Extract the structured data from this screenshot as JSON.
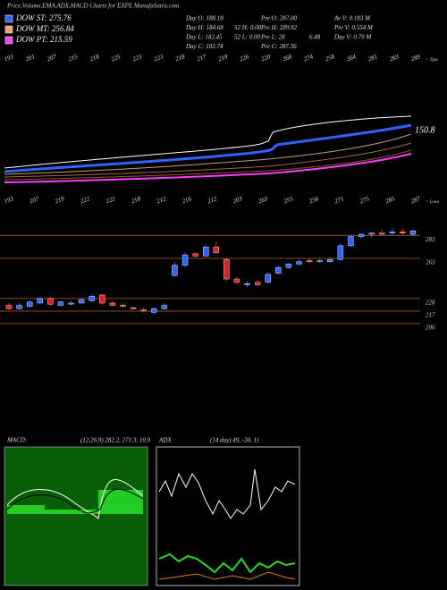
{
  "header": {
    "title": "Price,Volume,EMA,ADX,MACD Charts for EXPE MunafaSutra.com"
  },
  "legend": [
    {
      "label": "DOW ST: 275.76",
      "color": "#2f62ff"
    },
    {
      "label": "DOW MT: 256.84",
      "color": "#f4a070"
    },
    {
      "label": "DOW PT: 215.59",
      "color": "#ff3cff"
    }
  ],
  "stats": [
    [
      "Day O: 188.18",
      "Day H: 184.68",
      "Day L: 182.45",
      "Day C: 183.74"
    ],
    [
      "52 H: 0.00",
      "52 L: 0.00"
    ],
    [
      "Pre O: 287.00",
      "Pre H: 289.92",
      "Pre L: 28",
      "Pre C: 287.36"
    ],
    [
      "6.48"
    ],
    [
      "Av V: 0.183 M",
      "Pre V: 0.554 M",
      "Day V: 0.79 M"
    ]
  ],
  "chart_data": {
    "type": "candlestick",
    "tops_marker": "< Tops",
    "lows_marker": "< Lows",
    "tops": [
      193,
      201,
      207,
      215,
      218,
      225,
      223,
      223,
      218,
      217,
      219,
      226,
      220,
      268,
      274,
      258,
      264,
      281,
      283,
      289
    ],
    "lows": [
      193,
      207,
      219,
      222,
      222,
      218,
      212,
      216,
      212,
      203,
      263,
      255,
      256,
      271,
      275,
      285,
      287
    ],
    "ema_label": 150.8,
    "open": [
      222,
      219,
      221,
      224,
      228,
      222,
      223,
      224,
      226,
      231,
      224,
      222,
      220,
      218,
      216,
      219,
      248,
      257,
      267,
      265,
      273,
      262,
      245,
      240,
      242,
      242,
      250,
      255,
      258,
      261,
      261,
      260,
      262,
      274,
      282,
      284,
      285,
      285,
      286,
      284
    ],
    "high": [
      224,
      224,
      226,
      229,
      229,
      226,
      226,
      229,
      232,
      232,
      226,
      224,
      221,
      220,
      220,
      224,
      260,
      268,
      268,
      275,
      278,
      264,
      247,
      243,
      244,
      251,
      257,
      259,
      262,
      263,
      263,
      264,
      276,
      284,
      285,
      286,
      288,
      289,
      289,
      288
    ],
    "low": [
      218,
      218,
      220,
      223,
      222,
      221,
      222,
      223,
      225,
      222,
      221,
      220,
      218,
      216,
      214,
      218,
      247,
      255,
      264,
      264,
      267,
      243,
      240,
      238,
      239,
      241,
      249,
      254,
      257,
      259,
      259,
      259,
      261,
      273,
      280,
      281,
      282,
      283,
      283,
      282
    ],
    "close": [
      219,
      222,
      225,
      228,
      223,
      225,
      224,
      227,
      230,
      224,
      222,
      221,
      219,
      217,
      219,
      222,
      257,
      266,
      265,
      273,
      268,
      245,
      242,
      241,
      240,
      249,
      255,
      258,
      260,
      260,
      261,
      262,
      274,
      282,
      284,
      285,
      284,
      286,
      285,
      287
    ],
    "up_color": "#2f62ff",
    "down_color": "#e02020",
    "ylim": [
      192,
      309
    ],
    "yticks": [
      283,
      263,
      228,
      217,
      206
    ],
    "macd": {
      "name": "MACD:",
      "label": "(12,26,9) 282.2, 271.3, 10.9"
    },
    "adx": {
      "name": "ADX",
      "label": "(14 day) 49, -30, 11"
    }
  }
}
